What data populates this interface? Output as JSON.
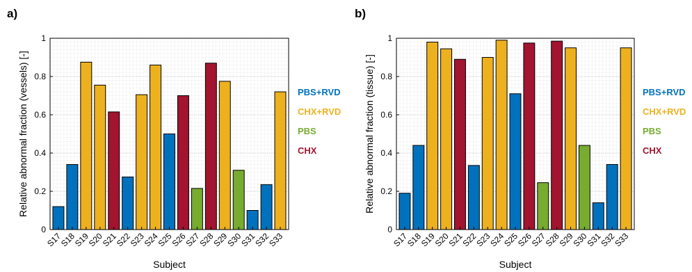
{
  "figure": {
    "legend": [
      {
        "label": "PBS+RVD",
        "color": "#0072BD"
      },
      {
        "label": "CHX+RVD",
        "color": "#EDB120"
      },
      {
        "label": "PBS",
        "color": "#77AC30"
      },
      {
        "label": "CHX",
        "color": "#A2142F"
      }
    ]
  },
  "chart_data": [
    {
      "type": "bar",
      "panel_label": "a)",
      "xlabel": "Subject",
      "ylabel": "Relative abnormal fraction (vessels) [-]",
      "ylim": [
        0,
        1
      ],
      "yticks": [
        0,
        0.2,
        0.4,
        0.6,
        0.8,
        1
      ],
      "ytick_labels": [
        "0",
        "0.2",
        "0.4",
        "0.6",
        "0.8",
        "1"
      ],
      "grid": "major and minor",
      "legend_position": "right",
      "categories": [
        "S17",
        "S18",
        "S19",
        "S20",
        "S21",
        "S22",
        "S23",
        "S24",
        "S25",
        "S26",
        "S27",
        "S28",
        "S29",
        "S30",
        "S31",
        "S32",
        "S33"
      ],
      "groups": [
        "PBS+RVD",
        "PBS+RVD",
        "CHX+RVD",
        "CHX+RVD",
        "CHX",
        "PBS+RVD",
        "CHX+RVD",
        "CHX+RVD",
        "PBS+RVD",
        "CHX",
        "PBS",
        "CHX",
        "CHX+RVD",
        "PBS",
        "PBS+RVD",
        "PBS+RVD",
        "CHX+RVD"
      ],
      "values": [
        0.12,
        0.34,
        0.875,
        0.755,
        0.615,
        0.275,
        0.705,
        0.86,
        0.5,
        0.7,
        0.215,
        0.87,
        0.775,
        0.31,
        0.1,
        0.235,
        0.72
      ]
    },
    {
      "type": "bar",
      "panel_label": "b)",
      "xlabel": "Subject",
      "ylabel": "Relative abnormal fraction (tissue) [-]",
      "ylim": [
        0,
        1
      ],
      "yticks": [
        0,
        0.2,
        0.4,
        0.6,
        0.8,
        1
      ],
      "ytick_labels": [
        "0",
        "0.2",
        "0.4",
        "0.6",
        "0.8",
        "1"
      ],
      "grid": "major and minor",
      "legend_position": "right",
      "categories": [
        "S17",
        "S18",
        "S19",
        "S20",
        "S21",
        "S22",
        "S23",
        "S24",
        "S25",
        "S26",
        "S27",
        "S28",
        "S29",
        "S30",
        "S31",
        "S32",
        "S33"
      ],
      "groups": [
        "PBS+RVD",
        "PBS+RVD",
        "CHX+RVD",
        "CHX+RVD",
        "CHX",
        "PBS+RVD",
        "CHX+RVD",
        "CHX+RVD",
        "PBS+RVD",
        "CHX",
        "PBS",
        "CHX",
        "CHX+RVD",
        "PBS",
        "PBS+RVD",
        "PBS+RVD",
        "CHX+RVD"
      ],
      "values": [
        0.19,
        0.44,
        0.98,
        0.945,
        0.89,
        0.335,
        0.9,
        0.99,
        0.71,
        0.975,
        0.245,
        0.985,
        0.95,
        0.44,
        0.14,
        0.34,
        0.95
      ]
    }
  ]
}
